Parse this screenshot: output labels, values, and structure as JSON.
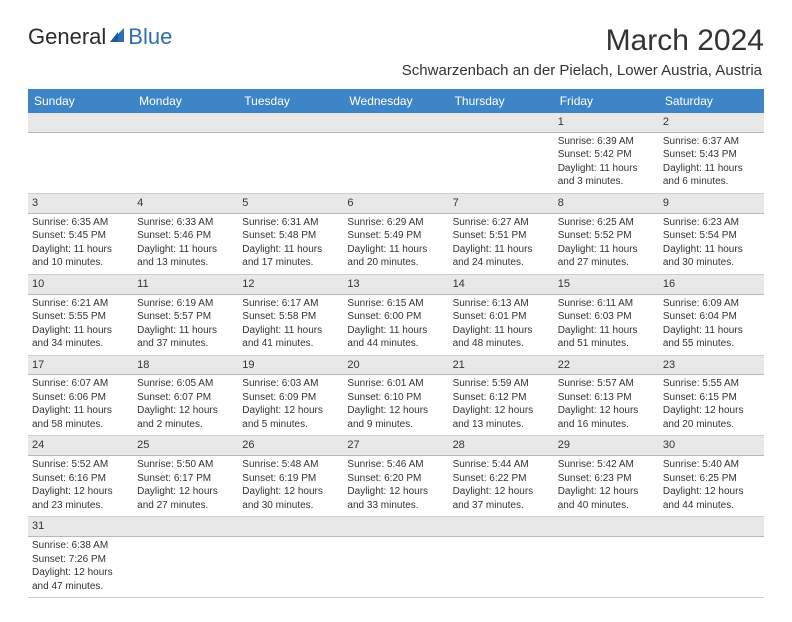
{
  "logo": {
    "text_general": "General",
    "text_blue": "Blue"
  },
  "title": "March 2024",
  "location": "Schwarzenbach an der Pielach, Lower Austria, Austria",
  "colors": {
    "header_bg": "#3d85c6",
    "header_text": "#ffffff",
    "daynum_bg": "#e8e8e8",
    "border": "#cfcfcf",
    "week_sep": "#3d85c6",
    "text": "#333333",
    "logo_blue": "#2d6fb4"
  },
  "typography": {
    "title_fontsize": 30,
    "location_fontsize": 15,
    "header_fontsize": 12,
    "daynum_fontsize": 11,
    "body_fontsize": 10
  },
  "weekdays": [
    "Sunday",
    "Monday",
    "Tuesday",
    "Wednesday",
    "Thursday",
    "Friday",
    "Saturday"
  ],
  "weeks": [
    [
      {
        "empty": true
      },
      {
        "empty": true
      },
      {
        "empty": true
      },
      {
        "empty": true
      },
      {
        "empty": true
      },
      {
        "num": "1",
        "sunrise": "Sunrise: 6:39 AM",
        "sunset": "Sunset: 5:42 PM",
        "daylight": "Daylight: 11 hours and 3 minutes."
      },
      {
        "num": "2",
        "sunrise": "Sunrise: 6:37 AM",
        "sunset": "Sunset: 5:43 PM",
        "daylight": "Daylight: 11 hours and 6 minutes."
      }
    ],
    [
      {
        "num": "3",
        "sunrise": "Sunrise: 6:35 AM",
        "sunset": "Sunset: 5:45 PM",
        "daylight": "Daylight: 11 hours and 10 minutes."
      },
      {
        "num": "4",
        "sunrise": "Sunrise: 6:33 AM",
        "sunset": "Sunset: 5:46 PM",
        "daylight": "Daylight: 11 hours and 13 minutes."
      },
      {
        "num": "5",
        "sunrise": "Sunrise: 6:31 AM",
        "sunset": "Sunset: 5:48 PM",
        "daylight": "Daylight: 11 hours and 17 minutes."
      },
      {
        "num": "6",
        "sunrise": "Sunrise: 6:29 AM",
        "sunset": "Sunset: 5:49 PM",
        "daylight": "Daylight: 11 hours and 20 minutes."
      },
      {
        "num": "7",
        "sunrise": "Sunrise: 6:27 AM",
        "sunset": "Sunset: 5:51 PM",
        "daylight": "Daylight: 11 hours and 24 minutes."
      },
      {
        "num": "8",
        "sunrise": "Sunrise: 6:25 AM",
        "sunset": "Sunset: 5:52 PM",
        "daylight": "Daylight: 11 hours and 27 minutes."
      },
      {
        "num": "9",
        "sunrise": "Sunrise: 6:23 AM",
        "sunset": "Sunset: 5:54 PM",
        "daylight": "Daylight: 11 hours and 30 minutes."
      }
    ],
    [
      {
        "num": "10",
        "sunrise": "Sunrise: 6:21 AM",
        "sunset": "Sunset: 5:55 PM",
        "daylight": "Daylight: 11 hours and 34 minutes."
      },
      {
        "num": "11",
        "sunrise": "Sunrise: 6:19 AM",
        "sunset": "Sunset: 5:57 PM",
        "daylight": "Daylight: 11 hours and 37 minutes."
      },
      {
        "num": "12",
        "sunrise": "Sunrise: 6:17 AM",
        "sunset": "Sunset: 5:58 PM",
        "daylight": "Daylight: 11 hours and 41 minutes."
      },
      {
        "num": "13",
        "sunrise": "Sunrise: 6:15 AM",
        "sunset": "Sunset: 6:00 PM",
        "daylight": "Daylight: 11 hours and 44 minutes."
      },
      {
        "num": "14",
        "sunrise": "Sunrise: 6:13 AM",
        "sunset": "Sunset: 6:01 PM",
        "daylight": "Daylight: 11 hours and 48 minutes."
      },
      {
        "num": "15",
        "sunrise": "Sunrise: 6:11 AM",
        "sunset": "Sunset: 6:03 PM",
        "daylight": "Daylight: 11 hours and 51 minutes."
      },
      {
        "num": "16",
        "sunrise": "Sunrise: 6:09 AM",
        "sunset": "Sunset: 6:04 PM",
        "daylight": "Daylight: 11 hours and 55 minutes."
      }
    ],
    [
      {
        "num": "17",
        "sunrise": "Sunrise: 6:07 AM",
        "sunset": "Sunset: 6:06 PM",
        "daylight": "Daylight: 11 hours and 58 minutes."
      },
      {
        "num": "18",
        "sunrise": "Sunrise: 6:05 AM",
        "sunset": "Sunset: 6:07 PM",
        "daylight": "Daylight: 12 hours and 2 minutes."
      },
      {
        "num": "19",
        "sunrise": "Sunrise: 6:03 AM",
        "sunset": "Sunset: 6:09 PM",
        "daylight": "Daylight: 12 hours and 5 minutes."
      },
      {
        "num": "20",
        "sunrise": "Sunrise: 6:01 AM",
        "sunset": "Sunset: 6:10 PM",
        "daylight": "Daylight: 12 hours and 9 minutes."
      },
      {
        "num": "21",
        "sunrise": "Sunrise: 5:59 AM",
        "sunset": "Sunset: 6:12 PM",
        "daylight": "Daylight: 12 hours and 13 minutes."
      },
      {
        "num": "22",
        "sunrise": "Sunrise: 5:57 AM",
        "sunset": "Sunset: 6:13 PM",
        "daylight": "Daylight: 12 hours and 16 minutes."
      },
      {
        "num": "23",
        "sunrise": "Sunrise: 5:55 AM",
        "sunset": "Sunset: 6:15 PM",
        "daylight": "Daylight: 12 hours and 20 minutes."
      }
    ],
    [
      {
        "num": "24",
        "sunrise": "Sunrise: 5:52 AM",
        "sunset": "Sunset: 6:16 PM",
        "daylight": "Daylight: 12 hours and 23 minutes."
      },
      {
        "num": "25",
        "sunrise": "Sunrise: 5:50 AM",
        "sunset": "Sunset: 6:17 PM",
        "daylight": "Daylight: 12 hours and 27 minutes."
      },
      {
        "num": "26",
        "sunrise": "Sunrise: 5:48 AM",
        "sunset": "Sunset: 6:19 PM",
        "daylight": "Daylight: 12 hours and 30 minutes."
      },
      {
        "num": "27",
        "sunrise": "Sunrise: 5:46 AM",
        "sunset": "Sunset: 6:20 PM",
        "daylight": "Daylight: 12 hours and 33 minutes."
      },
      {
        "num": "28",
        "sunrise": "Sunrise: 5:44 AM",
        "sunset": "Sunset: 6:22 PM",
        "daylight": "Daylight: 12 hours and 37 minutes."
      },
      {
        "num": "29",
        "sunrise": "Sunrise: 5:42 AM",
        "sunset": "Sunset: 6:23 PM",
        "daylight": "Daylight: 12 hours and 40 minutes."
      },
      {
        "num": "30",
        "sunrise": "Sunrise: 5:40 AM",
        "sunset": "Sunset: 6:25 PM",
        "daylight": "Daylight: 12 hours and 44 minutes."
      }
    ],
    [
      {
        "num": "31",
        "sunrise": "Sunrise: 6:38 AM",
        "sunset": "Sunset: 7:26 PM",
        "daylight": "Daylight: 12 hours and 47 minutes."
      },
      {
        "empty": true
      },
      {
        "empty": true
      },
      {
        "empty": true
      },
      {
        "empty": true
      },
      {
        "empty": true
      },
      {
        "empty": true
      }
    ]
  ]
}
